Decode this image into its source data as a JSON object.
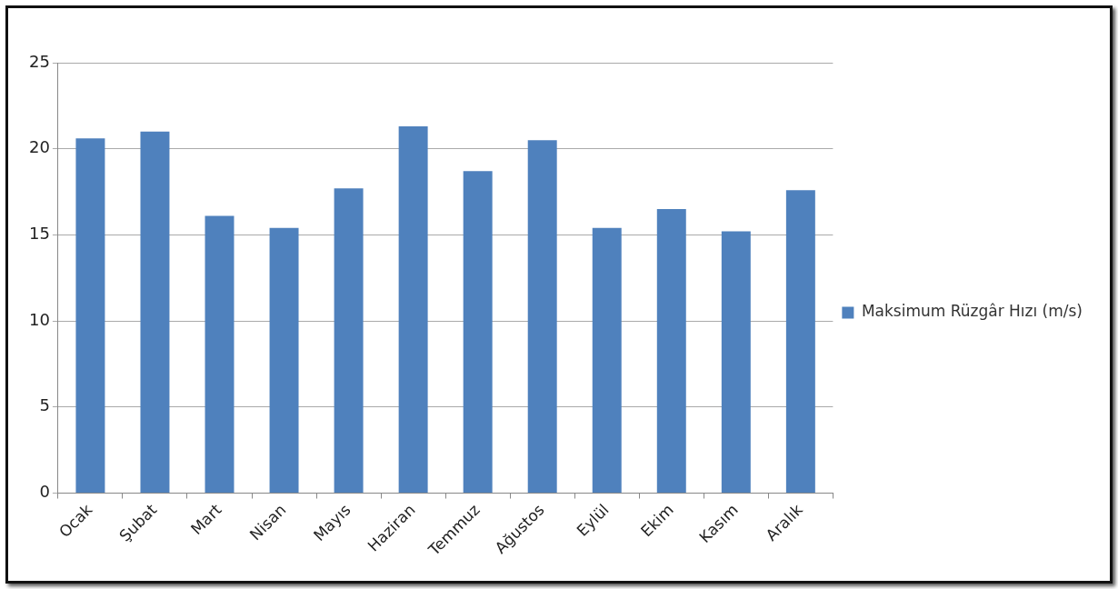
{
  "chart_data": {
    "type": "bar",
    "categories": [
      "Ocak",
      "Şubat",
      "Mart",
      "Nisan",
      "Mayıs",
      "Haziran",
      "Temmuz",
      "Ağustos",
      "Eylül",
      "Ekim",
      "Kasım",
      "Aralık"
    ],
    "series": [
      {
        "name": "Maksimum Rüzgâr Hızı (m/s)",
        "color": "#4f81bd",
        "values": [
          20.6,
          21.0,
          16.1,
          15.4,
          17.7,
          21.3,
          18.7,
          20.5,
          15.4,
          16.5,
          15.2,
          17.6
        ]
      }
    ],
    "ylim": [
      0,
      25
    ],
    "yticks": [
      0,
      5,
      10,
      15,
      20,
      25
    ],
    "grid": "y",
    "legend": "right"
  }
}
